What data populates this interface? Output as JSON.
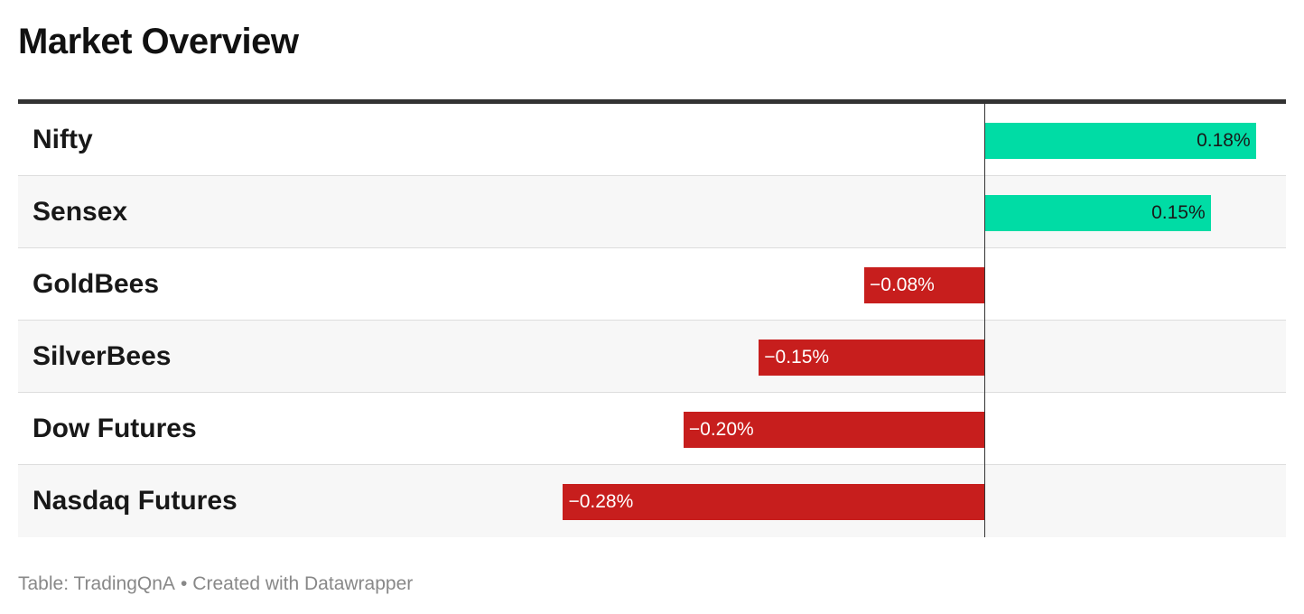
{
  "title": "Market Overview",
  "colors": {
    "positive": "#00dca5",
    "negative": "#c71e1d",
    "zero_line": "#333333"
  },
  "chart_data": {
    "type": "bar",
    "orientation": "horizontal",
    "title": "Market Overview",
    "xlim": [
      -0.42,
      0.2
    ],
    "rows": [
      {
        "name": "Nifty",
        "value": 0.18,
        "label": "0.18%"
      },
      {
        "name": "Sensex",
        "value": 0.15,
        "label": "0.15%"
      },
      {
        "name": "GoldBees",
        "value": -0.08,
        "label": "−0.08%"
      },
      {
        "name": "SilverBees",
        "value": -0.15,
        "label": "−0.15%"
      },
      {
        "name": "Dow Futures",
        "value": -0.2,
        "label": "−0.20%"
      },
      {
        "name": "Nasdaq Futures",
        "value": -0.28,
        "label": "−0.28%"
      }
    ]
  },
  "footer": {
    "source": "Table: TradingQnA",
    "separator": "•",
    "credit": "Created with Datawrapper"
  }
}
